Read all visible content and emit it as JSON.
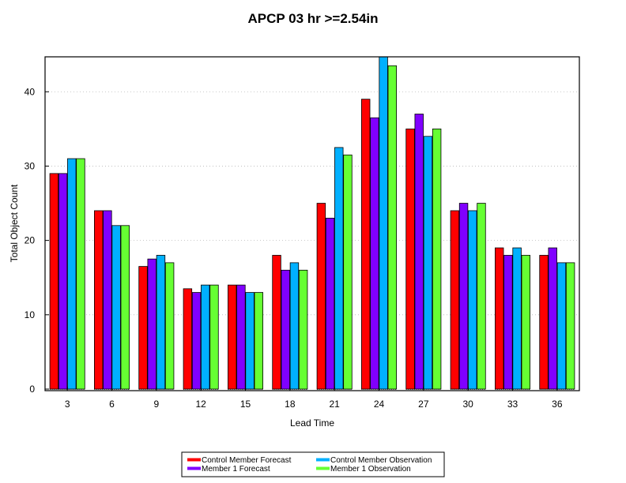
{
  "chart_data": {
    "type": "bar",
    "title": "APCP 03 hr >=2.54in",
    "xlabel": "Lead Time",
    "ylabel": "Total Object Count",
    "categories": [
      "3",
      "6",
      "9",
      "12",
      "15",
      "18",
      "21",
      "24",
      "27",
      "30",
      "33",
      "36"
    ],
    "ylim": [
      0,
      44.7
    ],
    "yticks": [
      "0",
      "10",
      "20",
      "30",
      "40"
    ],
    "grid": "horizontal dotted",
    "legend_position": "bottom",
    "series": [
      {
        "name": "Control Member Forecast",
        "color": "#ff0000",
        "values": [
          29,
          24,
          16.5,
          13.5,
          14,
          18,
          25,
          39,
          35,
          24,
          19,
          18
        ]
      },
      {
        "name": "Member 1 Forecast",
        "color": "#8000ff",
        "values": [
          29,
          24,
          17.5,
          13,
          14,
          16,
          23,
          36.5,
          37,
          25,
          18,
          19
        ]
      },
      {
        "name": "Control Member Observation",
        "color": "#00b0ff",
        "values": [
          31,
          22,
          18,
          14,
          13,
          17,
          32.5,
          44.7,
          34,
          24,
          19,
          17
        ]
      },
      {
        "name": "Member 1 Observation",
        "color": "#66ff33",
        "values": [
          31,
          22,
          17,
          14,
          13,
          16,
          31.5,
          43.5,
          35,
          25,
          18,
          17
        ]
      }
    ]
  }
}
